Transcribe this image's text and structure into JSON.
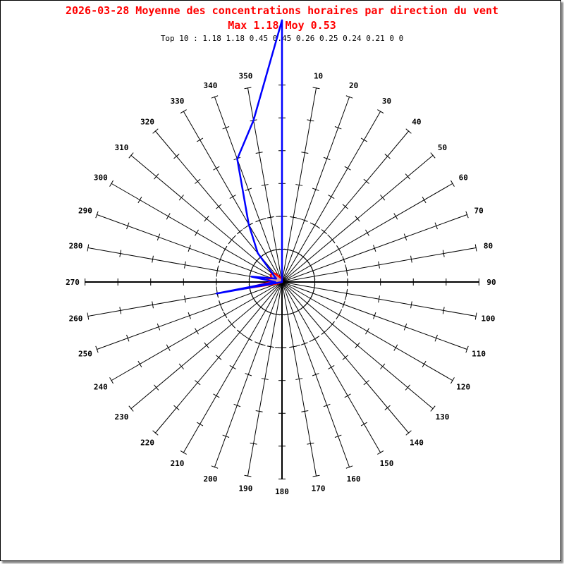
{
  "chart_data": {
    "type": "polar-line",
    "title": "2026-03-28 Moyenne des concentrations horaires par direction du vent",
    "subtitle": "Max 1.18 Moy 0.53",
    "top10_label": "Top 10 : 1.18 1.18 0.45 0.45 0.26 0.25 0.24 0.21 0 0",
    "direction_labels": [
      "",
      "10",
      "20",
      "30",
      "40",
      "50",
      "60",
      "70",
      "80",
      "90",
      "100",
      "110",
      "120",
      "130",
      "140",
      "150",
      "160",
      "170",
      "180",
      "190",
      "200",
      "210",
      "220",
      "230",
      "240",
      "250",
      "260",
      "270",
      "280",
      "290",
      "300",
      "310",
      "320",
      "330",
      "340",
      "350"
    ],
    "directions": [
      0,
      10,
      20,
      30,
      40,
      50,
      60,
      70,
      80,
      90,
      100,
      110,
      120,
      130,
      140,
      150,
      160,
      170,
      180,
      190,
      200,
      210,
      220,
      230,
      240,
      250,
      260,
      270,
      280,
      290,
      300,
      310,
      320,
      330,
      340,
      350
    ],
    "rmax": 0.89,
    "tick_step": 0.148,
    "circles": [
      {
        "r": 0.148,
        "style": "solid"
      },
      {
        "r": 0.296,
        "style": "dashed"
      }
    ],
    "series": [
      {
        "color": "#0000ff",
        "values": [
          1.18,
          0,
          0,
          0,
          0,
          0,
          0,
          0,
          0,
          0,
          0,
          0,
          0,
          0,
          0,
          0,
          0,
          0,
          0,
          0,
          0,
          0,
          0,
          0,
          0,
          0,
          0.3,
          0.03,
          0.14,
          0.05,
          0.03,
          0.05,
          0.17,
          0.3,
          0.59,
          0.74
        ]
      },
      {
        "color": "#ff0000",
        "fill": "#d8a0a0",
        "values": [
          0.02,
          0,
          0,
          0,
          0,
          0,
          0,
          0,
          0,
          0,
          0,
          0,
          0,
          0,
          0,
          0,
          0,
          0,
          0,
          0,
          0,
          0,
          0,
          0,
          0,
          0.02,
          0.17,
          0.05,
          0.07,
          0.05,
          0.06,
          0.06,
          0.05,
          0.03,
          0.02,
          0.02
        ]
      }
    ]
  }
}
